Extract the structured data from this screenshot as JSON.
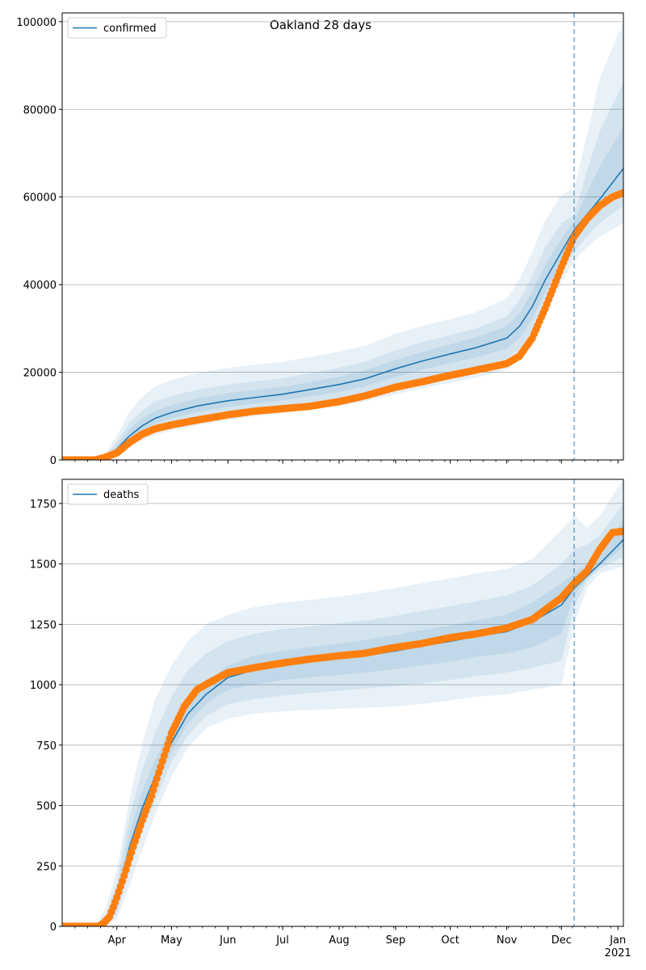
{
  "chart_data": {
    "title": "Oakland 28 days",
    "type": "line",
    "x_month_labels": [
      "Apr",
      "May",
      "Jun",
      "Jul",
      "Aug",
      "Sep",
      "Oct",
      "Nov",
      "Dec",
      "Jan"
    ],
    "x_year_label": "2021",
    "xlim": [
      "2020-03-02",
      "2021-01-04"
    ],
    "forecast_start": "2020-12-08",
    "colors": {
      "model": "#1f77b4",
      "observed": "#ff7f0e",
      "grid": "#b0b0b0"
    },
    "panels": [
      {
        "legend": "confirmed",
        "legend_position": "upper left",
        "ylim": [
          0,
          102000
        ],
        "yticks": [
          0,
          20000,
          40000,
          60000,
          80000,
          100000
        ],
        "ytick_labels": [
          "0",
          "20000",
          "40000",
          "60000",
          "80000",
          "100000"
        ],
        "grid": "horizontal",
        "model": {
          "x": [
            "2020-03-02",
            "2020-03-20",
            "2020-03-26",
            "2020-04-01",
            "2020-04-08",
            "2020-04-15",
            "2020-04-22",
            "2020-05-01",
            "2020-05-15",
            "2020-06-01",
            "2020-06-15",
            "2020-07-01",
            "2020-07-15",
            "2020-08-01",
            "2020-08-15",
            "2020-09-01",
            "2020-09-15",
            "2020-10-01",
            "2020-10-15",
            "2020-11-01",
            "2020-11-08",
            "2020-11-15",
            "2020-11-22",
            "2020-12-01",
            "2020-12-08",
            "2020-12-15",
            "2020-12-22",
            "2021-01-04"
          ],
          "mean": [
            0,
            0,
            400,
            2500,
            5500,
            7800,
            9500,
            10800,
            12300,
            13500,
            14200,
            15000,
            16000,
            17200,
            18500,
            20800,
            22500,
            24200,
            25600,
            27800,
            30500,
            35000,
            41000,
            47500,
            52500,
            56000,
            59500,
            66500
          ],
          "bands": [
            {
              "lower": [
                0,
                0,
                100,
                1100,
                2900,
                4500,
                5700,
                6700,
                7900,
                9100,
                9900,
                10700,
                11500,
                12300,
                13300,
                15000,
                16300,
                17600,
                18800,
                20600,
                22800,
                27000,
                33000,
                40500,
                45500,
                48500,
                51000,
                54000
              ],
              "upper": [
                0,
                0,
                1600,
                5500,
                11000,
                14400,
                16800,
                18300,
                19800,
                21000,
                21700,
                22400,
                23400,
                24700,
                26000,
                28800,
                30500,
                32100,
                33700,
                36800,
                41200,
                47500,
                54500,
                60500,
                62000,
                74000,
                87000,
                100000
              ]
            },
            {
              "lower": [
                0,
                0,
                200,
                1600,
                3800,
                5700,
                7200,
                8300,
                9600,
                10800,
                11500,
                12300,
                13100,
                14000,
                15200,
                17100,
                18600,
                20000,
                21200,
                23100,
                25300,
                29500,
                35500,
                42500,
                47500,
                51000,
                54000,
                58000
              ],
              "upper": [
                0,
                0,
                1000,
                4200,
                8500,
                11300,
                13300,
                14600,
                16000,
                17200,
                17900,
                18700,
                19700,
                21000,
                22400,
                25000,
                26800,
                28500,
                30000,
                32800,
                36500,
                42000,
                48500,
                54000,
                56000,
                66000,
                75000,
                86000
              ]
            },
            {
              "lower": [
                0,
                0,
                300,
                2000,
                4600,
                6700,
                8300,
                9500,
                10900,
                12100,
                12800,
                13600,
                14500,
                15500,
                16800,
                18900,
                20500,
                22100,
                23400,
                25400,
                27800,
                32200,
                38200,
                45000,
                50000,
                53500,
                57000,
                62000
              ],
              "upper": [
                0,
                0,
                600,
                3200,
                7000,
                9500,
                11200,
                12500,
                14000,
                15200,
                15900,
                16700,
                17700,
                19000,
                20400,
                22800,
                24600,
                26400,
                28000,
                30500,
                33500,
                38500,
                44500,
                50500,
                54500,
                61000,
                67000,
                76000
              ]
            }
          ]
        },
        "observed": {
          "x": [
            "2020-03-02",
            "2020-03-20",
            "2020-03-25",
            "2020-04-01",
            "2020-04-08",
            "2020-04-15",
            "2020-04-22",
            "2020-05-01",
            "2020-05-15",
            "2020-06-01",
            "2020-06-15",
            "2020-07-01",
            "2020-07-15",
            "2020-08-01",
            "2020-08-15",
            "2020-09-01",
            "2020-09-15",
            "2020-10-01",
            "2020-10-15",
            "2020-11-01",
            "2020-11-08",
            "2020-11-15",
            "2020-11-22",
            "2020-12-01",
            "2020-12-08",
            "2020-12-15",
            "2020-12-22",
            "2020-12-29",
            "2021-01-04"
          ],
          "y": [
            0,
            0,
            500,
            1600,
            4000,
            5900,
            7100,
            8000,
            9100,
            10300,
            11100,
            11700,
            12200,
            13300,
            14600,
            16600,
            17800,
            19300,
            20500,
            22000,
            23700,
            27800,
            34500,
            44000,
            51000,
            55000,
            58000,
            60000,
            61000
          ]
        }
      },
      {
        "legend": "deaths",
        "legend_position": "upper left",
        "ylim": [
          0,
          1850
        ],
        "yticks": [
          0,
          250,
          500,
          750,
          1000,
          1250,
          1500,
          1750
        ],
        "ytick_labels": [
          "0",
          "250",
          "500",
          "750",
          "1000",
          "1250",
          "1500",
          "1750"
        ],
        "grid": "horizontal",
        "model": {
          "x": [
            "2020-03-02",
            "2020-03-20",
            "2020-03-26",
            "2020-04-01",
            "2020-04-08",
            "2020-04-15",
            "2020-04-22",
            "2020-05-01",
            "2020-05-10",
            "2020-05-20",
            "2020-06-01",
            "2020-06-15",
            "2020-07-01",
            "2020-07-15",
            "2020-08-01",
            "2020-08-15",
            "2020-09-01",
            "2020-09-15",
            "2020-10-01",
            "2020-10-15",
            "2020-11-01",
            "2020-11-15",
            "2020-12-01",
            "2020-12-08",
            "2020-12-15",
            "2020-12-22",
            "2021-01-04"
          ],
          "mean": [
            0,
            0,
            20,
            100,
            330,
            490,
            620,
            760,
            880,
            960,
            1030,
            1060,
            1080,
            1095,
            1110,
            1120,
            1140,
            1160,
            1180,
            1200,
            1220,
            1260,
            1330,
            1400,
            1450,
            1500,
            1600
          ],
          "bands": [
            {
              "lower": [
                0,
                0,
                0,
                30,
                170,
                320,
                460,
                620,
                740,
                820,
                860,
                880,
                890,
                895,
                900,
                905,
                910,
                920,
                935,
                950,
                960,
                980,
                1000,
                1250,
                1400,
                1460,
                1490
              ],
              "upper": [
                0,
                0,
                80,
                230,
                530,
                760,
                940,
                1080,
                1180,
                1250,
                1290,
                1320,
                1340,
                1350,
                1365,
                1380,
                1400,
                1420,
                1440,
                1460,
                1480,
                1520,
                1640,
                1700,
                1650,
                1700,
                1850
              ]
            },
            {
              "lower": [
                0,
                0,
                5,
                50,
                230,
                390,
                520,
                680,
                790,
                870,
                920,
                940,
                955,
                965,
                975,
                985,
                995,
                1005,
                1020,
                1035,
                1050,
                1070,
                1100,
                1320,
                1430,
                1480,
                1530
              ],
              "upper": [
                0,
                0,
                50,
                180,
                460,
                650,
                800,
                950,
                1060,
                1130,
                1180,
                1210,
                1230,
                1240,
                1255,
                1265,
                1285,
                1305,
                1325,
                1345,
                1370,
                1410,
                1500,
                1560,
                1580,
                1620,
                1750
              ]
            },
            {
              "lower": [
                0,
                0,
                10,
                70,
                280,
                440,
                570,
                720,
                840,
                920,
                980,
                1000,
                1020,
                1030,
                1040,
                1050,
                1065,
                1080,
                1095,
                1115,
                1130,
                1155,
                1210,
                1370,
                1440,
                1490,
                1570
              ],
              "upper": [
                0,
                0,
                35,
                140,
                390,
                560,
                690,
                830,
                940,
                1010,
                1080,
                1120,
                1140,
                1155,
                1170,
                1185,
                1205,
                1225,
                1245,
                1265,
                1290,
                1340,
                1420,
                1460,
                1500,
                1550,
                1680
              ]
            }
          ]
        },
        "observed": {
          "x": [
            "2020-03-02",
            "2020-03-22",
            "2020-03-25",
            "2020-03-28",
            "2020-04-01",
            "2020-04-05",
            "2020-04-10",
            "2020-04-15",
            "2020-04-20",
            "2020-04-25",
            "2020-05-01",
            "2020-05-08",
            "2020-05-15",
            "2020-05-22",
            "2020-06-01",
            "2020-06-15",
            "2020-07-01",
            "2020-07-15",
            "2020-08-01",
            "2020-08-15",
            "2020-09-01",
            "2020-09-15",
            "2020-10-01",
            "2020-10-15",
            "2020-11-01",
            "2020-11-15",
            "2020-12-01",
            "2020-12-08",
            "2020-12-15",
            "2020-12-22",
            "2020-12-29",
            "2021-01-04"
          ],
          "y": [
            0,
            0,
            15,
            40,
            120,
            210,
            330,
            440,
            540,
            660,
            800,
            910,
            980,
            1010,
            1050,
            1070,
            1090,
            1105,
            1120,
            1130,
            1155,
            1170,
            1195,
            1210,
            1235,
            1270,
            1360,
            1420,
            1470,
            1560,
            1630,
            1635
          ]
        }
      }
    ]
  }
}
